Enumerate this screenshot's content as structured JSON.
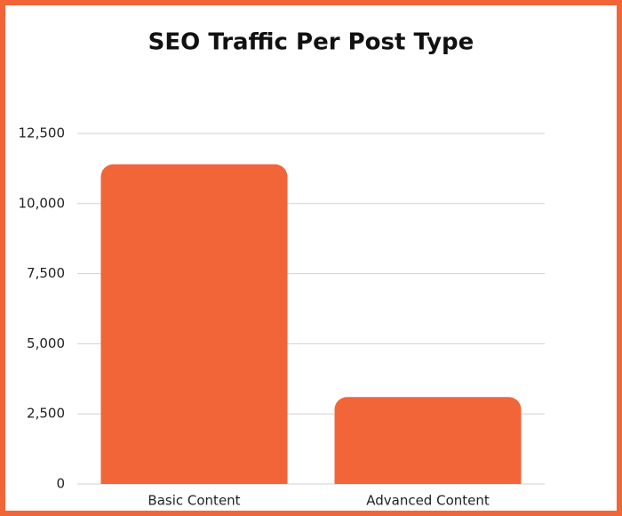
{
  "chart_data": {
    "type": "bar",
    "title": "SEO Traffic Per Post Type",
    "categories": [
      "Basic Content",
      "Advanced Content"
    ],
    "values": [
      11400,
      3100
    ],
    "color": "#f26539",
    "ylim": [
      0,
      12500
    ],
    "yticks": [
      0,
      {
        "value": 2500,
        "label": "2,500"
      },
      {
        "value": 5000,
        "label": "5,000"
      },
      {
        "value": 7500,
        "label": "7,500"
      },
      {
        "value": 10000,
        "label": "10,000"
      },
      {
        "value": 12500,
        "label": "12,500"
      }
    ],
    "grid": true
  }
}
